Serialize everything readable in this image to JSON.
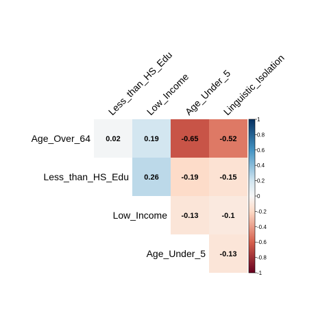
{
  "chart_data": {
    "type": "heatmap",
    "title": "",
    "column_labels": [
      "Less_than_HS_Edu",
      "Low_Income",
      "Age_Under_5",
      "Linguistic_Isolation"
    ],
    "row_labels": [
      "Age_Over_64",
      "Less_than_HS_Edu",
      "Low_Income",
      "Age_Under_5"
    ],
    "cells": [
      {
        "row": 0,
        "col": 0,
        "value": 0.02,
        "label": "0.02"
      },
      {
        "row": 0,
        "col": 1,
        "value": 0.19,
        "label": "0.19"
      },
      {
        "row": 0,
        "col": 2,
        "value": -0.65,
        "label": "-0.65"
      },
      {
        "row": 0,
        "col": 3,
        "value": -0.52,
        "label": "-0.52"
      },
      {
        "row": 1,
        "col": 1,
        "value": 0.26,
        "label": "0.26"
      },
      {
        "row": 1,
        "col": 2,
        "value": -0.19,
        "label": "-0.19"
      },
      {
        "row": 1,
        "col": 3,
        "value": -0.15,
        "label": "-0.15"
      },
      {
        "row": 2,
        "col": 2,
        "value": -0.13,
        "label": "-0.13"
      },
      {
        "row": 2,
        "col": 3,
        "value": -0.1,
        "label": "-0.1"
      },
      {
        "row": 3,
        "col": 3,
        "value": -0.13,
        "label": "-0.13"
      }
    ],
    "colorbar": {
      "range": [
        -1,
        1
      ],
      "ticks": [
        "1",
        "0.8",
        "0.6",
        "0.4",
        "0.2",
        "0",
        "-0.2",
        "-0.4",
        "-0.6",
        "-0.8",
        "-1"
      ],
      "tick_values": [
        1,
        0.8,
        0.6,
        0.4,
        0.2,
        0,
        -0.2,
        -0.4,
        -0.6,
        -0.8,
        -1
      ],
      "colors": {
        "neg_end": "#67001f",
        "neg_mid": "#d6604d",
        "neg_light": "#fddbc7",
        "zero": "#f7f7f7",
        "pos_light": "#d1e5f0",
        "pos_mid": "#4393c3",
        "pos_end": "#053061"
      }
    },
    "legend_position": "right"
  }
}
